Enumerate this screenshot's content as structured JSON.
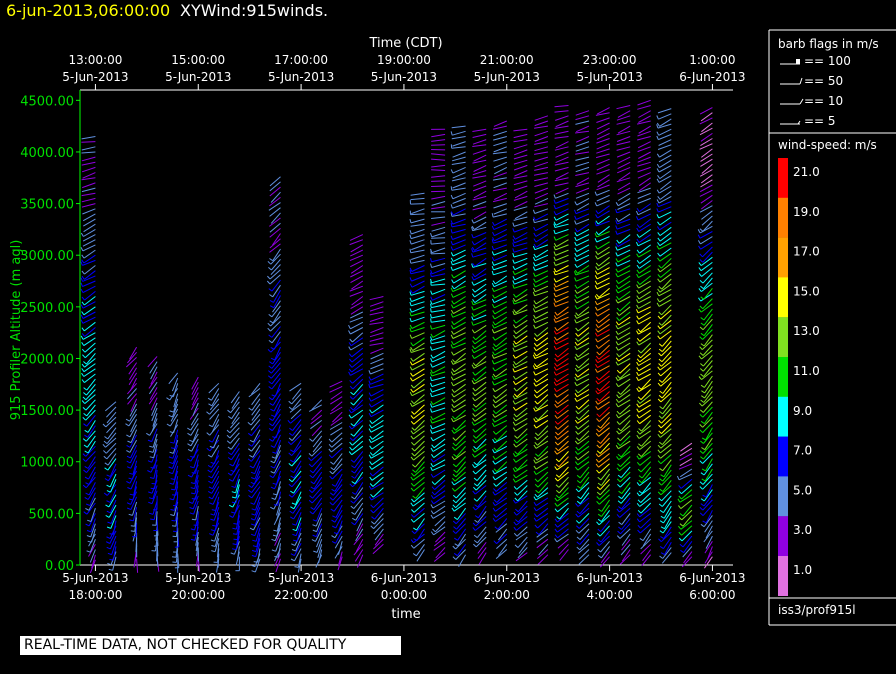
{
  "header": {
    "datetime": "6-jun-2013,06:00:00",
    "product": "XYWind:915winds."
  },
  "notice": "REAL-TIME DATA, NOT CHECKED FOR QUALITY",
  "colors": {
    "datetime": "#ffff00",
    "axis": "#00ff00",
    "background": "#000000"
  },
  "chart_data": {
    "type": "scatter",
    "subtype": "wind-barbs",
    "title_top_axis": "Time (CDT)",
    "xlabel": "time",
    "ylabel": "915 Profiler Altitude (m agl)",
    "ylim": [
      0,
      4600
    ],
    "x_range_utc_hours": [
      17.7,
      30.4
    ],
    "y_ticks": [
      "0.00",
      "500.00",
      "1000.00",
      "1500.00",
      "2000.00",
      "2500.00",
      "3000.00",
      "3500.00",
      "4000.00",
      "4500.00"
    ],
    "bottom_ticks": [
      {
        "date": "5-Jun-2013",
        "time": "18:00:00"
      },
      {
        "date": "5-Jun-2013",
        "time": "20:00:00"
      },
      {
        "date": "5-Jun-2013",
        "time": "22:00:00"
      },
      {
        "date": "6-Jun-2013",
        "time": "0:00:00"
      },
      {
        "date": "6-Jun-2013",
        "time": "2:00:00"
      },
      {
        "date": "6-Jun-2013",
        "time": "4:00:00"
      },
      {
        "date": "6-Jun-2013",
        "time": "6:00:00"
      }
    ],
    "top_ticks": [
      {
        "time": "13:00:00",
        "date": "5-Jun-2013"
      },
      {
        "time": "15:00:00",
        "date": "5-Jun-2013"
      },
      {
        "time": "17:00:00",
        "date": "5-Jun-2013"
      },
      {
        "time": "19:00:00",
        "date": "5-Jun-2013"
      },
      {
        "time": "21:00:00",
        "date": "5-Jun-2013"
      },
      {
        "time": "23:00:00",
        "date": "5-Jun-2013"
      },
      {
        "time": "1:00:00",
        "date": "6-Jun-2013"
      }
    ],
    "profiles": [
      {
        "t": 18.0,
        "bottom": 50,
        "top": 4150,
        "speed_lo": 4,
        "speed_hi": 9,
        "dir_lo": 200,
        "dir_hi": 260
      },
      {
        "t": 18.4,
        "bottom": 80,
        "top": 1600,
        "speed_lo": 5,
        "speed_hi": 8,
        "dir_lo": 190,
        "dir_hi": 230
      },
      {
        "t": 18.8,
        "bottom": 60,
        "top": 2150,
        "speed_lo": 3,
        "speed_hi": 7,
        "dir_lo": 185,
        "dir_hi": 220
      },
      {
        "t": 19.2,
        "bottom": 70,
        "top": 2050,
        "speed_lo": 4,
        "speed_hi": 7,
        "dir_lo": 180,
        "dir_hi": 215
      },
      {
        "t": 19.6,
        "bottom": 60,
        "top": 1900,
        "speed_lo": 5,
        "speed_hi": 7,
        "dir_lo": 180,
        "dir_hi": 210
      },
      {
        "t": 20.0,
        "bottom": 70,
        "top": 1850,
        "speed_lo": 4,
        "speed_hi": 7,
        "dir_lo": 185,
        "dir_hi": 215
      },
      {
        "t": 20.4,
        "bottom": 60,
        "top": 1800,
        "speed_lo": 5,
        "speed_hi": 7,
        "dir_lo": 190,
        "dir_hi": 220
      },
      {
        "t": 20.8,
        "bottom": 80,
        "top": 1700,
        "speed_lo": 5,
        "speed_hi": 8,
        "dir_lo": 190,
        "dir_hi": 220
      },
      {
        "t": 21.2,
        "bottom": 60,
        "top": 1800,
        "speed_lo": 5,
        "speed_hi": 7,
        "dir_lo": 195,
        "dir_hi": 225
      },
      {
        "t": 21.6,
        "bottom": 60,
        "top": 3800,
        "speed_lo": 4,
        "speed_hi": 7,
        "dir_lo": 195,
        "dir_hi": 230
      },
      {
        "t": 22.0,
        "bottom": 60,
        "top": 1800,
        "speed_lo": 5,
        "speed_hi": 8,
        "dir_lo": 200,
        "dir_hi": 230
      },
      {
        "t": 22.4,
        "bottom": 100,
        "top": 1600,
        "speed_lo": 4,
        "speed_hi": 7,
        "dir_lo": 200,
        "dir_hi": 235
      },
      {
        "t": 22.8,
        "bottom": 80,
        "top": 1800,
        "speed_lo": 3,
        "speed_hi": 7,
        "dir_lo": 200,
        "dir_hi": 240
      },
      {
        "t": 23.2,
        "bottom": 100,
        "top": 3200,
        "speed_lo": 3,
        "speed_hi": 8,
        "dir_lo": 210,
        "dir_hi": 250
      },
      {
        "t": 23.6,
        "bottom": 200,
        "top": 2600,
        "speed_lo": 3,
        "speed_hi": 9,
        "dir_lo": 220,
        "dir_hi": 260
      },
      {
        "t": 24.4,
        "bottom": 150,
        "top": 3600,
        "speed_lo": 5,
        "speed_hi": 14,
        "dir_lo": 220,
        "dir_hi": 260
      },
      {
        "t": 24.8,
        "bottom": 120,
        "top": 4250,
        "speed_lo": 3,
        "speed_hi": 10,
        "dir_lo": 230,
        "dir_hi": 270
      },
      {
        "t": 25.2,
        "bottom": 100,
        "top": 4250,
        "speed_lo": 5,
        "speed_hi": 13,
        "dir_lo": 220,
        "dir_hi": 260
      },
      {
        "t": 25.6,
        "bottom": 120,
        "top": 4250,
        "speed_lo": 3,
        "speed_hi": 12,
        "dir_lo": 220,
        "dir_hi": 255
      },
      {
        "t": 26.0,
        "bottom": 150,
        "top": 4300,
        "speed_lo": 4,
        "speed_hi": 12,
        "dir_lo": 225,
        "dir_hi": 255
      },
      {
        "t": 26.4,
        "bottom": 120,
        "top": 4250,
        "speed_lo": 3,
        "speed_hi": 14,
        "dir_lo": 225,
        "dir_hi": 255
      },
      {
        "t": 26.8,
        "bottom": 100,
        "top": 4350,
        "speed_lo": 3,
        "speed_hi": 15,
        "dir_lo": 225,
        "dir_hi": 255
      },
      {
        "t": 27.2,
        "bottom": 150,
        "top": 4450,
        "speed_lo": 3,
        "speed_hi": 21,
        "dir_lo": 225,
        "dir_hi": 255
      },
      {
        "t": 27.6,
        "bottom": 100,
        "top": 4400,
        "speed_lo": 4,
        "speed_hi": 14,
        "dir_lo": 220,
        "dir_hi": 255
      },
      {
        "t": 28.0,
        "bottom": 80,
        "top": 4450,
        "speed_lo": 3,
        "speed_hi": 20,
        "dir_lo": 220,
        "dir_hi": 250
      },
      {
        "t": 28.4,
        "bottom": 100,
        "top": 4450,
        "speed_lo": 3,
        "speed_hi": 14,
        "dir_lo": 220,
        "dir_hi": 250
      },
      {
        "t": 28.8,
        "bottom": 100,
        "top": 4500,
        "speed_lo": 3,
        "speed_hi": 15,
        "dir_lo": 220,
        "dir_hi": 250
      },
      {
        "t": 29.2,
        "bottom": 120,
        "top": 4450,
        "speed_lo": 5,
        "speed_hi": 15,
        "dir_lo": 215,
        "dir_hi": 245
      },
      {
        "t": 29.6,
        "bottom": 80,
        "top": 1200,
        "speed_lo": 2,
        "speed_hi": 12,
        "dir_lo": 215,
        "dir_hi": 245
      },
      {
        "t": 30.0,
        "bottom": 80,
        "top": 4450,
        "speed_lo": 2,
        "speed_hi": 13,
        "dir_lo": 210,
        "dir_hi": 240
      }
    ]
  },
  "legend": {
    "flags_title": "barb flags in m/s",
    "flags": [
      "== 100",
      "== 50",
      "== 10",
      "== 5"
    ],
    "speed_title": "wind-speed: m/s",
    "speed_bins": [
      {
        "label": "21.0",
        "color": "#ff0000"
      },
      {
        "label": "19.0",
        "color": "#ff8000"
      },
      {
        "label": "17.0",
        "color": "#ffa000"
      },
      {
        "label": "15.0",
        "color": "#ffff00"
      },
      {
        "label": "13.0",
        "color": "#80e020"
      },
      {
        "label": "11.0",
        "color": "#00e000"
      },
      {
        "label": "9.0",
        "color": "#00ffff"
      },
      {
        "label": "7.0",
        "color": "#0000ff"
      },
      {
        "label": "5.0",
        "color": "#6090e0"
      },
      {
        "label": "3.0",
        "color": "#9000e0"
      },
      {
        "label": "1.0",
        "color": "#e070e0"
      }
    ],
    "station": "iss3/prof915l"
  }
}
